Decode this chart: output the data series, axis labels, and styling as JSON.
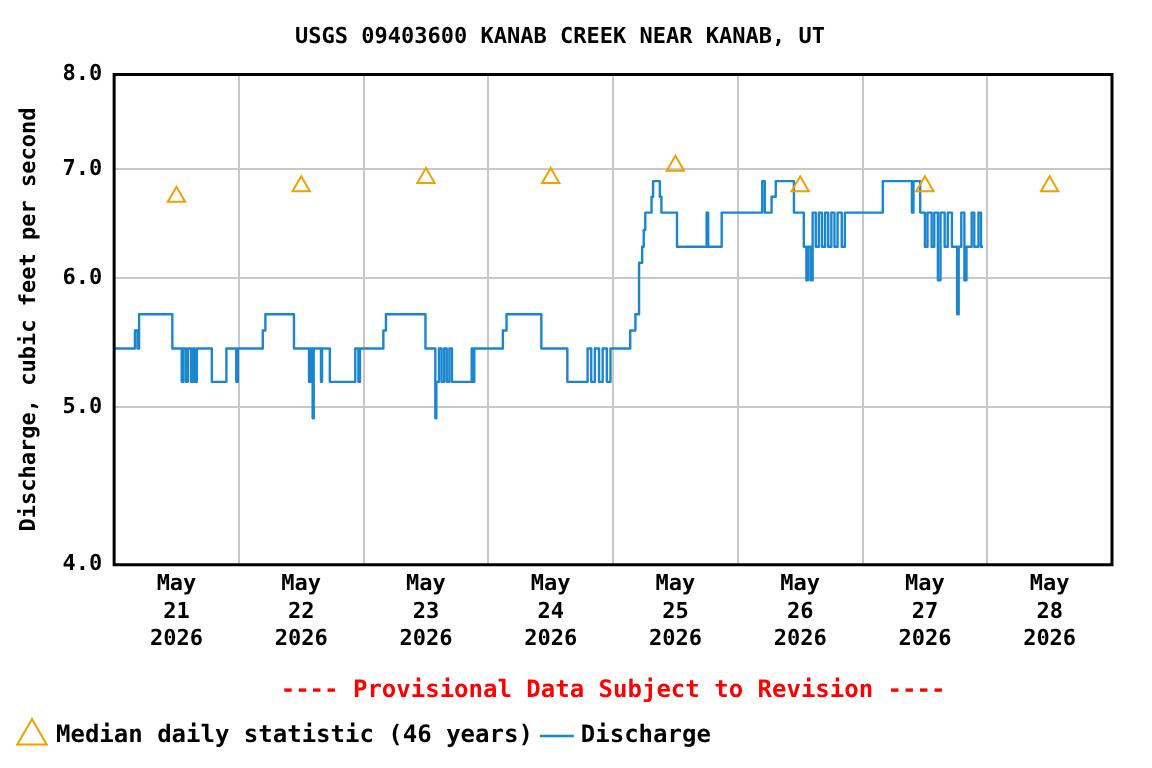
{
  "chart_data": {
    "type": "step",
    "title": "USGS 09403600 KANAB CREEK NEAR KANAB, UT",
    "ylabel": "Discharge, cubic feet per second",
    "annotations": [
      "---- Provisional Data Subject to Revision ----"
    ],
    "log": "y",
    "grid": true,
    "legend": "bottom",
    "xlim": [
      "2026-05-21T00:00",
      "2026-05-29T00:00"
    ],
    "xticks": [
      {
        "value": "2026-05-21T12:00",
        "label": "May\n21\n2026"
      },
      {
        "value": "2026-05-22T00:00",
        "label": null
      },
      {
        "value": "2026-05-22T12:00",
        "label": "May\n22\n2026"
      },
      {
        "value": "2026-05-23T00:00",
        "label": null
      },
      {
        "value": "2026-05-23T12:00",
        "label": "May\n23\n2026"
      },
      {
        "value": "2026-05-24T00:00",
        "label": null
      },
      {
        "value": "2026-05-24T12:00",
        "label": "May\n24\n2026"
      },
      {
        "value": "2026-05-25T00:00",
        "label": null
      },
      {
        "value": "2026-05-25T12:00",
        "label": "May\n25\n2026"
      },
      {
        "value": "2026-05-26T00:00",
        "label": null
      },
      {
        "value": "2026-05-26T12:00",
        "label": "May\n26\n2026"
      },
      {
        "value": "2026-05-27T00:00",
        "label": null
      },
      {
        "value": "2026-05-27T12:00",
        "label": "May\n27\n2026"
      },
      {
        "value": "2026-05-28T00:00",
        "label": null
      },
      {
        "value": "2026-05-28T12:00",
        "label": "May\n28\n2026"
      }
    ],
    "ylim": [
      4,
      8
    ],
    "yticks": [
      {
        "value": 4,
        "label": "4.0"
      },
      {
        "value": 5,
        "label": "5.0"
      },
      {
        "value": 6,
        "label": "6.0"
      },
      {
        "value": 7,
        "label": "7.0"
      },
      {
        "value": 8,
        "label": "8.0"
      }
    ],
    "series": [
      {
        "name": "Median daily statistic (46 years)",
        "type": "scatter",
        "marker": "triangle",
        "color": "#f0a000",
        "x": [
          "2026-05-21T12:00",
          "2026-05-22T12:00",
          "2026-05-23T12:00",
          "2026-05-24T12:00",
          "2026-05-25T12:00",
          "2026-05-26T12:00",
          "2026-05-27T12:00",
          "2026-05-28T12:00"
        ],
        "values": [
          6.73,
          6.83,
          6.91,
          6.91,
          7.03,
          6.83,
          6.83,
          6.83
        ]
      },
      {
        "name": "Discharge",
        "line_style": "solid",
        "color": "#1a86d0",
        "x": [
          "2026-05-21T00:00",
          "2026-05-21T04:00",
          "2026-05-21T04:30",
          "2026-05-21T04:48",
          "2026-05-21T11:12",
          "2026-05-21T13:00",
          "2026-05-21T13:18",
          "2026-05-21T13:48",
          "2026-05-21T14:12",
          "2026-05-21T14:48",
          "2026-05-21T15:12",
          "2026-05-21T15:30",
          "2026-05-21T15:54",
          "2026-05-21T18:48",
          "2026-05-21T21:36",
          "2026-05-21T23:30",
          "2026-05-21T23:48",
          "2026-05-22T04:36",
          "2026-05-22T05:06",
          "2026-05-22T10:36",
          "2026-05-22T13:30",
          "2026-05-22T13:48",
          "2026-05-22T14:12",
          "2026-05-22T14:24",
          "2026-05-22T15:48",
          "2026-05-22T16:00",
          "2026-05-22T17:30",
          "2026-05-22T22:24",
          "2026-05-22T23:00",
          "2026-05-22T23:18",
          "2026-05-23T03:48",
          "2026-05-23T04:18",
          "2026-05-23T11:54",
          "2026-05-23T13:48",
          "2026-05-23T14:00",
          "2026-05-23T14:30",
          "2026-05-23T15:00",
          "2026-05-23T15:30",
          "2026-05-23T16:00",
          "2026-05-23T16:30",
          "2026-05-23T17:00",
          "2026-05-23T20:48",
          "2026-05-23T21:00",
          "2026-05-23T21:18",
          "2026-05-24T02:48",
          "2026-05-24T03:30",
          "2026-05-24T10:12",
          "2026-05-24T15:12",
          "2026-05-24T19:06",
          "2026-05-24T19:48",
          "2026-05-24T20:30",
          "2026-05-24T21:18",
          "2026-05-24T22:00",
          "2026-05-24T22:48",
          "2026-05-24T23:30",
          "2026-05-25T03:18",
          "2026-05-25T04:18",
          "2026-05-25T05:00",
          "2026-05-25T05:36",
          "2026-05-25T05:54",
          "2026-05-25T06:12",
          "2026-05-25T07:24",
          "2026-05-25T07:42",
          "2026-05-25T09:00",
          "2026-05-25T09:18",
          "2026-05-25T12:18",
          "2026-05-25T18:00",
          "2026-05-25T18:18",
          "2026-05-25T20:54",
          "2026-05-26T04:42",
          "2026-05-26T05:12",
          "2026-05-26T06:30",
          "2026-05-26T07:18",
          "2026-05-26T10:48",
          "2026-05-26T12:42",
          "2026-05-26T13:12",
          "2026-05-26T13:30",
          "2026-05-26T14:00",
          "2026-05-26T14:24",
          "2026-05-26T15:00",
          "2026-05-26T15:36",
          "2026-05-26T16:12",
          "2026-05-26T16:48",
          "2026-05-26T17:24",
          "2026-05-26T18:00",
          "2026-05-26T18:36",
          "2026-05-26T19:12",
          "2026-05-26T20:00",
          "2026-05-26T20:36",
          "2026-05-27T03:54",
          "2026-05-27T09:30",
          "2026-05-27T09:48",
          "2026-05-27T11:06",
          "2026-05-27T12:00",
          "2026-05-27T12:30",
          "2026-05-27T13:18",
          "2026-05-27T13:48",
          "2026-05-27T14:30",
          "2026-05-27T15:00",
          "2026-05-27T15:48",
          "2026-05-27T16:24",
          "2026-05-27T17:12",
          "2026-05-27T18:12",
          "2026-05-27T18:30",
          "2026-05-27T19:00",
          "2026-05-27T19:36",
          "2026-05-27T20:00",
          "2026-05-27T21:00",
          "2026-05-27T21:30",
          "2026-05-27T22:18",
          "2026-05-27T22:48",
          "2026-05-27T23:12"
        ],
        "values": [
          5.43,
          5.57,
          5.43,
          5.7,
          5.43,
          5.18,
          5.43,
          5.18,
          5.43,
          5.18,
          5.43,
          5.18,
          5.43,
          5.18,
          5.43,
          5.18,
          5.43,
          5.57,
          5.7,
          5.43,
          5.18,
          5.43,
          4.92,
          5.43,
          5.18,
          5.43,
          5.18,
          5.43,
          5.18,
          5.43,
          5.57,
          5.7,
          5.43,
          4.92,
          5.18,
          5.43,
          5.18,
          5.43,
          5.18,
          5.43,
          5.18,
          5.43,
          5.18,
          5.43,
          5.57,
          5.7,
          5.43,
          5.18,
          5.43,
          5.18,
          5.43,
          5.18,
          5.43,
          5.18,
          5.43,
          5.57,
          5.7,
          6.13,
          6.27,
          6.42,
          6.58,
          6.73,
          6.88,
          6.73,
          6.58,
          6.27,
          6.58,
          6.27,
          6.58,
          6.88,
          6.58,
          6.73,
          6.88,
          6.58,
          6.27,
          5.98,
          6.27,
          5.98,
          6.58,
          6.27,
          6.58,
          6.27,
          6.58,
          6.27,
          6.58,
          6.27,
          6.58,
          6.27,
          6.58,
          6.88,
          6.58,
          6.88,
          6.58,
          6.27,
          6.58,
          6.27,
          6.58,
          5.98,
          6.58,
          6.27,
          6.58,
          6.27,
          5.7,
          6.27,
          6.58,
          5.98,
          6.27,
          6.58,
          6.27,
          6.58,
          6.27,
          6.27
        ]
      }
    ]
  }
}
